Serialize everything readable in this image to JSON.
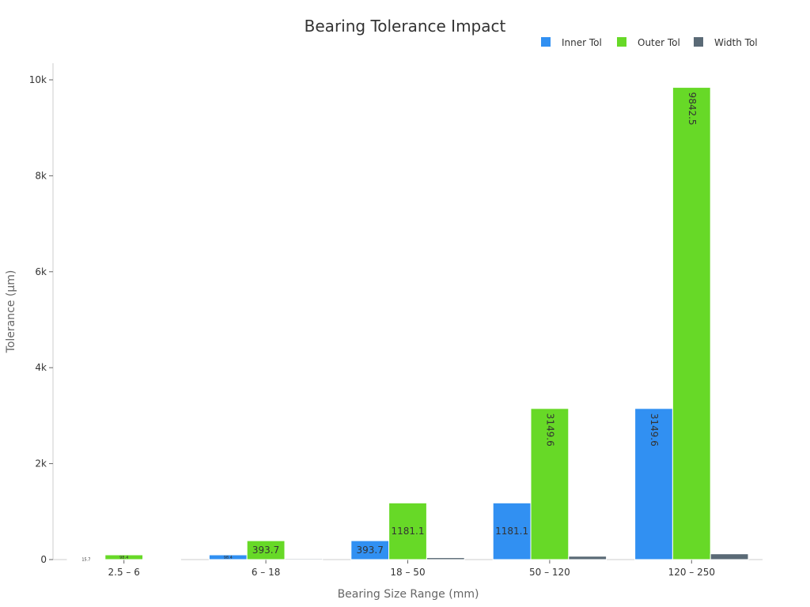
{
  "chart_data": {
    "type": "bar",
    "title": "Bearing Tolerance Impact",
    "xlabel": "Bearing Size Range (mm)",
    "ylabel": "Tolerance (µm)",
    "categories": [
      "2.5 – 6",
      "6 – 18",
      "18 – 50",
      "50 – 120",
      "120 – 250"
    ],
    "series": [
      {
        "name": "Inner Tol",
        "color": "#3190f2",
        "values": [
          15.7,
          98.4,
          393.7,
          1181.1,
          3149.6
        ]
      },
      {
        "name": "Outer Tol",
        "color": "#67d927",
        "values": [
          98.4,
          393.7,
          1181.1,
          3149.6,
          9842.5
        ]
      },
      {
        "name": "Width Tol",
        "color": "#5a6a76",
        "values": [
          4,
          20,
          40,
          70,
          120
        ]
      }
    ],
    "ylim": [
      0,
      10000
    ],
    "yticks": [
      0,
      2000,
      4000,
      6000,
      8000,
      10000
    ],
    "ytick_labels": [
      "0",
      "2k",
      "4k",
      "6k",
      "8k",
      "10k"
    ],
    "legend": "top-right",
    "grid": false
  }
}
